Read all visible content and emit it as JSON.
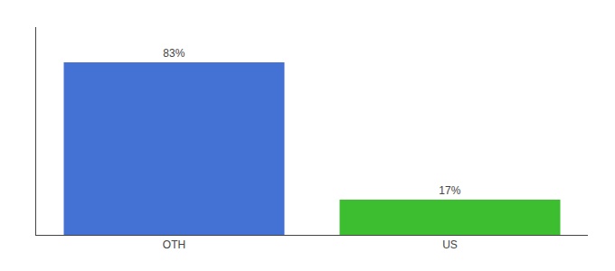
{
  "chart_data": {
    "type": "bar",
    "categories": [
      "OTH",
      "US"
    ],
    "values": [
      83,
      17
    ],
    "value_labels": [
      "83%",
      "17%"
    ],
    "colors": [
      "#4472d4",
      "#3dbe30"
    ],
    "ylim": [
      0,
      100
    ],
    "data_labels": true,
    "tick_labels": "x",
    "grid": false
  }
}
